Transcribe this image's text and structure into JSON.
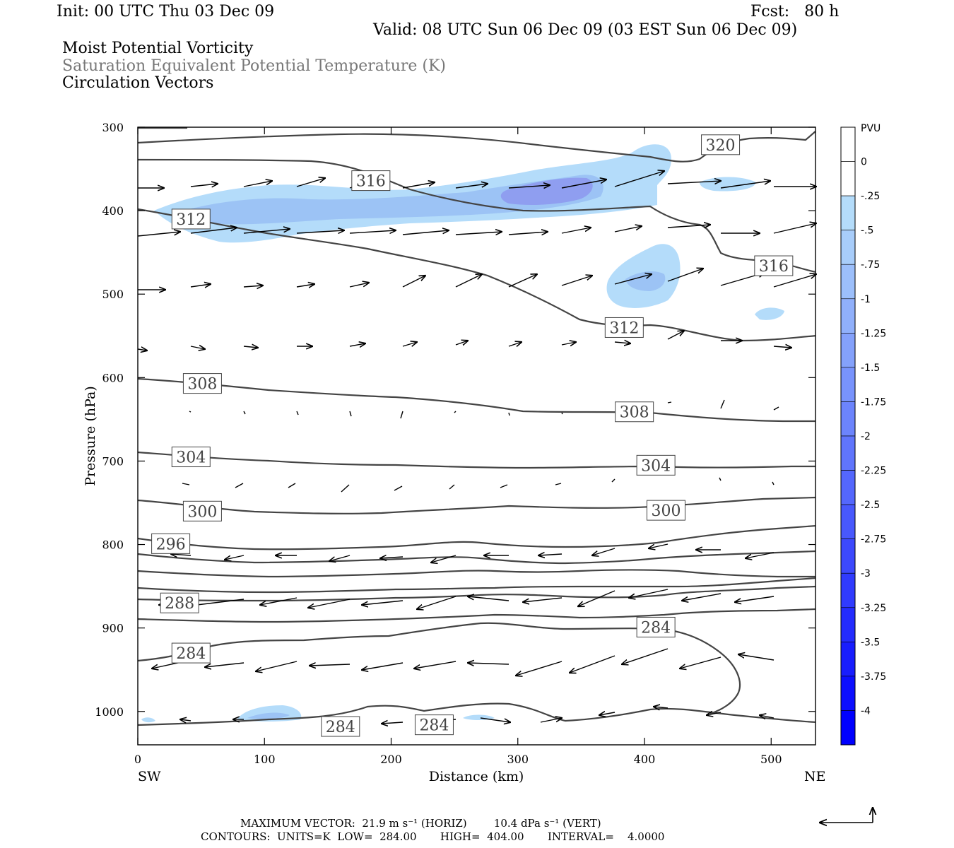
{
  "header": {
    "init": "Init: 00 UTC Thu 03 Dec 09",
    "fcst": "Fcst:   80 h",
    "valid": "Valid: 08 UTC Sun 06 Dec 09 (03 EST Sun 06 Dec 09)",
    "field1": "Moist Potential Vorticity",
    "field2": "Saturation Equivalent Potential Temperature (K)",
    "field3": "Circulation Vectors"
  },
  "footer": {
    "max_vector": "MAXIMUM VECTOR:  21.9 m s⁻¹ (HORIZ)        10.4 dPa s⁻¹ (VERT)",
    "contours": "CONTOURS:  UNITS=K  LOW=  284.00       HIGH=  404.00       INTERVAL=    4.0000"
  },
  "colors": {
    "contour": "#444444",
    "pv_light": "#b4dcfa",
    "pv_mid": "#9cc3f5",
    "pv_dark": "#8f9ef0",
    "cb_negative_max": "#0000ff"
  },
  "chart_data": {
    "type": "contour",
    "xlabel": "Distance (km)",
    "ylabel": "Pressure (hPa)",
    "x_end_labels": [
      "SW",
      "NE"
    ],
    "xlim": [
      0,
      535
    ],
    "ylim": [
      1040,
      300
    ],
    "x_ticks": [
      0,
      100,
      200,
      300,
      400,
      500
    ],
    "y_ticks": [
      300,
      400,
      500,
      600,
      700,
      800,
      900,
      1000
    ],
    "colorbar": {
      "title": "PVU",
      "labels": [
        "0",
        "-.25",
        "-.5",
        "-.75",
        "-1",
        "-1.25",
        "-1.5",
        "-1.75",
        "-2",
        "-2.25",
        "-2.5",
        "-2.75",
        "-3",
        "-3.25",
        "-3.5",
        "-3.75",
        "-4"
      ]
    },
    "contour_labels": [
      {
        "text": "320",
        "x": 460,
        "y": 321
      },
      {
        "text": "316",
        "x": 184,
        "y": 364
      },
      {
        "text": "316",
        "x": 502,
        "y": 466
      },
      {
        "text": "312",
        "x": 42,
        "y": 410
      },
      {
        "text": "312",
        "x": 384,
        "y": 540
      },
      {
        "text": "308",
        "x": 51,
        "y": 607
      },
      {
        "text": "308",
        "x": 392,
        "y": 641
      },
      {
        "text": "304",
        "x": 42,
        "y": 695
      },
      {
        "text": "304",
        "x": 409,
        "y": 705
      },
      {
        "text": "300",
        "x": 51,
        "y": 760
      },
      {
        "text": "300",
        "x": 417,
        "y": 759
      },
      {
        "text": "296",
        "x": 26,
        "y": 799
      },
      {
        "text": "288",
        "x": 33,
        "y": 870
      },
      {
        "text": "284",
        "x": 42,
        "y": 930
      },
      {
        "text": "284",
        "x": 409,
        "y": 899
      },
      {
        "text": "284",
        "x": 160,
        "y": 1018
      },
      {
        "text": "284",
        "x": 234,
        "y": 1016
      }
    ]
  }
}
